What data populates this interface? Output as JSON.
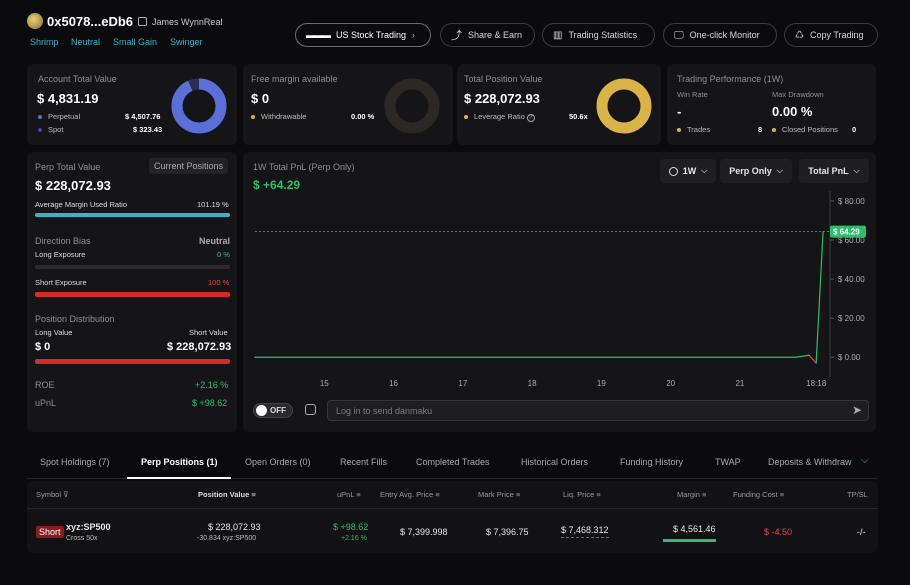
{
  "header": {
    "address": "0x5078...eDb6",
    "username": "James WynnReal",
    "tags": [
      "Shrimp",
      "Neutral",
      "Small Gain",
      "Swinger"
    ],
    "buttons": {
      "us_stock": "US Stock Trading",
      "share": "Share & Earn",
      "stats": "Trading Statistics",
      "monitor": "One-click Monitor",
      "copy": "Copy Trading"
    }
  },
  "summary": {
    "account": {
      "label": "Account Total Value",
      "value": "$ 4,831.19",
      "perpetual_label": "Perpetual",
      "perpetual_value": "$ 4,507.76",
      "spot_label": "Spot",
      "spot_value": "$ 323.43",
      "perp_fraction": 0.933
    },
    "margin": {
      "label": "Free margin available",
      "value": "$ 0",
      "withdrawable_label": "Withdrawable",
      "withdrawable_value": "0.00 %"
    },
    "position": {
      "label": "Total Position Value",
      "value": "$ 228,072.93",
      "leverage_label": "Leverage Ratio",
      "leverage_value": "50.6x"
    },
    "performance": {
      "label": "Trading Performance (1W)",
      "win_rate_label": "Win Rate",
      "win_rate_value": "-",
      "drawdown_label": "Max Drawdown",
      "drawdown_value": "0.00 %",
      "trades_label": "Trades",
      "trades_value": "8",
      "closed_label": "Closed Positions",
      "closed_value": "0"
    }
  },
  "perp": {
    "title": "Perp Total Value",
    "current_positions": "Current Positions",
    "value": "$ 228,072.93",
    "avg_margin_label": "Average Margin Used Ratio",
    "avg_margin_value": "101.19 %",
    "avg_margin_fraction": 1.0,
    "direction_label": "Direction Bias",
    "direction_value": "Neutral",
    "long_exposure_label": "Long Exposure",
    "long_exposure_value": "0 %",
    "short_exposure_label": "Short Exposure",
    "short_exposure_value": "100 %",
    "short_exposure_fraction": 1.0,
    "dist_label": "Position Distribution",
    "long_value_label": "Long Value",
    "short_value_label": "Short Value",
    "long_value": "$ 0",
    "short_value": "$ 228,072.93",
    "roe_label": "ROE",
    "roe_value": "+2.16 %",
    "upnl_label": "uPnL",
    "upnl_value": "$ +98.62"
  },
  "pnl": {
    "title": "1W Total PnL (Perp Only)",
    "value": "$ +64.29",
    "period": "1W",
    "filter": "Perp Only",
    "metric": "Total PnL",
    "toggle": "OFF",
    "danmaku_placeholder": "Log in to send danmaku"
  },
  "chart_data": {
    "type": "line",
    "title": "1W Total PnL (Perp Only)",
    "x_ticks": [
      "15",
      "16",
      "17",
      "18",
      "19",
      "20",
      "21",
      "18:18"
    ],
    "y_ticks": [
      "$ 80.00",
      "$ 60.00",
      "$ 40.00",
      "$ 20.00",
      "$ 0.00"
    ],
    "ylim": [
      -5,
      82
    ],
    "current_label": "$ 64.29",
    "reference_value": 64.29,
    "series": [
      {
        "x": [
          14.0,
          21.8,
          22.0,
          22.1,
          22.2
        ],
        "y": [
          0,
          0,
          1,
          -3,
          64.29
        ],
        "color": "#2ebd6b"
      }
    ],
    "xlim": [
      14.0,
      22.3
    ]
  },
  "tabs": [
    "Spot Holdings (7)",
    "Perp Positions (1)",
    "Open Orders (0)",
    "Recent Fills",
    "Completed Trades",
    "Historical Orders",
    "Funding History",
    "TWAP",
    "Deposits & Withdraw"
  ],
  "table": {
    "headers": [
      "Symbol",
      "Position Value",
      "uPnL",
      "Entry Avg. Price",
      "Mark Price",
      "Liq. Price",
      "Margin",
      "Funding Cost",
      "TP/SL"
    ],
    "row": {
      "side": "Short",
      "symbol": "xyz:SP500",
      "mode": "Cross 50x",
      "position_value": "$ 228,072.93",
      "position_size": "-30.834 xyz:SP500",
      "upnl": "$ +98.62",
      "upnl_pct": "+2.16 %",
      "entry": "$ 7,399.998",
      "mark": "$ 7,396.75",
      "liq": "$ 7,468.312",
      "margin": "$ 4,561.46",
      "funding": "$ -4.50",
      "tpsl": "-/-"
    }
  },
  "colors": {
    "green": "#2ebd6b",
    "red": "#e84545",
    "donut_blue": "#5a6fd8",
    "donut_gold": "#d9b24a",
    "teal": "#3fb0c9"
  }
}
